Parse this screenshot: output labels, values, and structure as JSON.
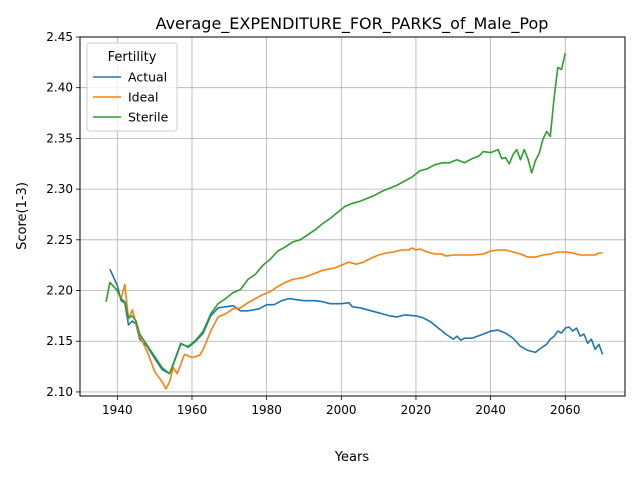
{
  "chart_data": {
    "type": "line",
    "title": "Average_EXPENDITURE_FOR_PARKS_of_Male_Pop",
    "xlabel": "Years",
    "ylabel": "Score(1-3)",
    "xlim": [
      1930,
      2076
    ],
    "ylim": [
      2.096,
      2.45
    ],
    "xticks": [
      1940,
      1960,
      1980,
      2000,
      2020,
      2040,
      2060
    ],
    "yticks": [
      2.1,
      2.15,
      2.2,
      2.25,
      2.3,
      2.35,
      2.4,
      2.45
    ],
    "grid": true,
    "legend": {
      "title": "Fertility",
      "position": "top-left"
    },
    "series": [
      {
        "name": "Actual",
        "color": "#1f77b4",
        "points": [
          [
            1938,
            2.221
          ],
          [
            1940,
            2.205
          ],
          [
            1941,
            2.19
          ],
          [
            1942,
            2.188
          ],
          [
            1943,
            2.166
          ],
          [
            1944,
            2.17
          ],
          [
            1945,
            2.167
          ],
          [
            1946,
            2.152
          ],
          [
            1948,
            2.145
          ],
          [
            1950,
            2.133
          ],
          [
            1952,
            2.122
          ],
          [
            1954,
            2.118
          ],
          [
            1955,
            2.128
          ],
          [
            1957,
            2.148
          ],
          [
            1959,
            2.144
          ],
          [
            1961,
            2.15
          ],
          [
            1963,
            2.158
          ],
          [
            1965,
            2.175
          ],
          [
            1967,
            2.183
          ],
          [
            1969,
            2.184
          ],
          [
            1971,
            2.185
          ],
          [
            1973,
            2.18
          ],
          [
            1975,
            2.18
          ],
          [
            1978,
            2.182
          ],
          [
            1980,
            2.186
          ],
          [
            1982,
            2.186
          ],
          [
            1984,
            2.19
          ],
          [
            1986,
            2.192
          ],
          [
            1988,
            2.191
          ],
          [
            1990,
            2.19
          ],
          [
            1993,
            2.19
          ],
          [
            1995,
            2.189
          ],
          [
            1997,
            2.187
          ],
          [
            2000,
            2.187
          ],
          [
            2002,
            2.188
          ],
          [
            2003,
            2.184
          ],
          [
            2005,
            2.183
          ],
          [
            2008,
            2.18
          ],
          [
            2010,
            2.178
          ],
          [
            2013,
            2.175
          ],
          [
            2015,
            2.174
          ],
          [
            2017,
            2.176
          ],
          [
            2020,
            2.175
          ],
          [
            2022,
            2.173
          ],
          [
            2024,
            2.169
          ],
          [
            2026,
            2.163
          ],
          [
            2028,
            2.157
          ],
          [
            2030,
            2.152
          ],
          [
            2031,
            2.155
          ],
          [
            2032,
            2.151
          ],
          [
            2033,
            2.153
          ],
          [
            2035,
            2.153
          ],
          [
            2038,
            2.157
          ],
          [
            2040,
            2.16
          ],
          [
            2042,
            2.161
          ],
          [
            2044,
            2.158
          ],
          [
            2046,
            2.153
          ],
          [
            2048,
            2.145
          ],
          [
            2050,
            2.141
          ],
          [
            2052,
            2.139
          ],
          [
            2053,
            2.142
          ],
          [
            2055,
            2.147
          ],
          [
            2056,
            2.152
          ],
          [
            2057,
            2.155
          ],
          [
            2058,
            2.16
          ],
          [
            2059,
            2.158
          ],
          [
            2060,
            2.163
          ],
          [
            2061,
            2.164
          ],
          [
            2062,
            2.16
          ],
          [
            2063,
            2.163
          ],
          [
            2064,
            2.155
          ],
          [
            2065,
            2.157
          ],
          [
            2066,
            2.148
          ],
          [
            2067,
            2.152
          ],
          [
            2068,
            2.142
          ],
          [
            2069,
            2.147
          ],
          [
            2070,
            2.137
          ]
        ]
      },
      {
        "name": "Ideal",
        "color": "#ff7f0e",
        "points": [
          [
            1938,
            2.208
          ],
          [
            1940,
            2.2
          ],
          [
            1941,
            2.192
          ],
          [
            1942,
            2.206
          ],
          [
            1943,
            2.172
          ],
          [
            1944,
            2.181
          ],
          [
            1945,
            2.168
          ],
          [
            1946,
            2.155
          ],
          [
            1948,
            2.14
          ],
          [
            1950,
            2.12
          ],
          [
            1952,
            2.11
          ],
          [
            1953,
            2.103
          ],
          [
            1954,
            2.11
          ],
          [
            1955,
            2.124
          ],
          [
            1956,
            2.118
          ],
          [
            1958,
            2.137
          ],
          [
            1960,
            2.134
          ],
          [
            1962,
            2.136
          ],
          [
            1963,
            2.142
          ],
          [
            1965,
            2.16
          ],
          [
            1967,
            2.174
          ],
          [
            1969,
            2.177
          ],
          [
            1971,
            2.182
          ],
          [
            1973,
            2.183
          ],
          [
            1975,
            2.188
          ],
          [
            1977,
            2.192
          ],
          [
            1979,
            2.196
          ],
          [
            1981,
            2.199
          ],
          [
            1983,
            2.204
          ],
          [
            1985,
            2.208
          ],
          [
            1987,
            2.211
          ],
          [
            1990,
            2.213
          ],
          [
            1993,
            2.217
          ],
          [
            1995,
            2.22
          ],
          [
            1998,
            2.222
          ],
          [
            2000,
            2.225
          ],
          [
            2002,
            2.228
          ],
          [
            2004,
            2.226
          ],
          [
            2006,
            2.228
          ],
          [
            2008,
            2.232
          ],
          [
            2010,
            2.235
          ],
          [
            2012,
            2.237
          ],
          [
            2014,
            2.238
          ],
          [
            2016,
            2.24
          ],
          [
            2018,
            2.24
          ],
          [
            2019,
            2.242
          ],
          [
            2020,
            2.24
          ],
          [
            2021,
            2.241
          ],
          [
            2023,
            2.238
          ],
          [
            2025,
            2.236
          ],
          [
            2027,
            2.236
          ],
          [
            2028,
            2.234
          ],
          [
            2030,
            2.235
          ],
          [
            2033,
            2.235
          ],
          [
            2035,
            2.235
          ],
          [
            2038,
            2.236
          ],
          [
            2040,
            2.239
          ],
          [
            2042,
            2.24
          ],
          [
            2044,
            2.24
          ],
          [
            2046,
            2.238
          ],
          [
            2048,
            2.236
          ],
          [
            2050,
            2.233
          ],
          [
            2052,
            2.233
          ],
          [
            2054,
            2.235
          ],
          [
            2056,
            2.236
          ],
          [
            2058,
            2.238
          ],
          [
            2060,
            2.238
          ],
          [
            2062,
            2.237
          ],
          [
            2064,
            2.235
          ],
          [
            2066,
            2.235
          ],
          [
            2068,
            2.235
          ],
          [
            2069,
            2.237
          ],
          [
            2070,
            2.237
          ]
        ]
      },
      {
        "name": "Sterile",
        "color": "#2ca02c",
        "points": [
          [
            1937,
            2.189
          ],
          [
            1938,
            2.208
          ],
          [
            1940,
            2.2
          ],
          [
            1941,
            2.192
          ],
          [
            1942,
            2.189
          ],
          [
            1943,
            2.173
          ],
          [
            1944,
            2.175
          ],
          [
            1945,
            2.17
          ],
          [
            1946,
            2.157
          ],
          [
            1948,
            2.146
          ],
          [
            1950,
            2.135
          ],
          [
            1952,
            2.124
          ],
          [
            1954,
            2.118
          ],
          [
            1955,
            2.127
          ],
          [
            1957,
            2.147
          ],
          [
            1959,
            2.145
          ],
          [
            1961,
            2.151
          ],
          [
            1963,
            2.16
          ],
          [
            1965,
            2.177
          ],
          [
            1967,
            2.187
          ],
          [
            1969,
            2.192
          ],
          [
            1971,
            2.198
          ],
          [
            1973,
            2.201
          ],
          [
            1975,
            2.211
          ],
          [
            1977,
            2.216
          ],
          [
            1979,
            2.225
          ],
          [
            1981,
            2.231
          ],
          [
            1983,
            2.239
          ],
          [
            1985,
            2.243
          ],
          [
            1987,
            2.248
          ],
          [
            1989,
            2.25
          ],
          [
            1991,
            2.255
          ],
          [
            1993,
            2.26
          ],
          [
            1995,
            2.266
          ],
          [
            1997,
            2.271
          ],
          [
            1999,
            2.277
          ],
          [
            2001,
            2.283
          ],
          [
            2003,
            2.286
          ],
          [
            2005,
            2.288
          ],
          [
            2007,
            2.291
          ],
          [
            2009,
            2.294
          ],
          [
            2011,
            2.298
          ],
          [
            2013,
            2.301
          ],
          [
            2015,
            2.304
          ],
          [
            2017,
            2.308
          ],
          [
            2019,
            2.312
          ],
          [
            2021,
            2.318
          ],
          [
            2023,
            2.32
          ],
          [
            2025,
            2.324
          ],
          [
            2027,
            2.326
          ],
          [
            2029,
            2.326
          ],
          [
            2031,
            2.329
          ],
          [
            2033,
            2.326
          ],
          [
            2035,
            2.33
          ],
          [
            2037,
            2.333
          ],
          [
            2038,
            2.337
          ],
          [
            2040,
            2.336
          ],
          [
            2042,
            2.339
          ],
          [
            2043,
            2.33
          ],
          [
            2044,
            2.331
          ],
          [
            2045,
            2.325
          ],
          [
            2046,
            2.334
          ],
          [
            2047,
            2.339
          ],
          [
            2048,
            2.329
          ],
          [
            2049,
            2.339
          ],
          [
            2050,
            2.33
          ],
          [
            2051,
            2.316
          ],
          [
            2052,
            2.328
          ],
          [
            2053,
            2.335
          ],
          [
            2054,
            2.349
          ],
          [
            2055,
            2.357
          ],
          [
            2056,
            2.352
          ],
          [
            2057,
            2.39
          ],
          [
            2058,
            2.42
          ],
          [
            2059,
            2.418
          ],
          [
            2060,
            2.434
          ]
        ]
      }
    ]
  }
}
